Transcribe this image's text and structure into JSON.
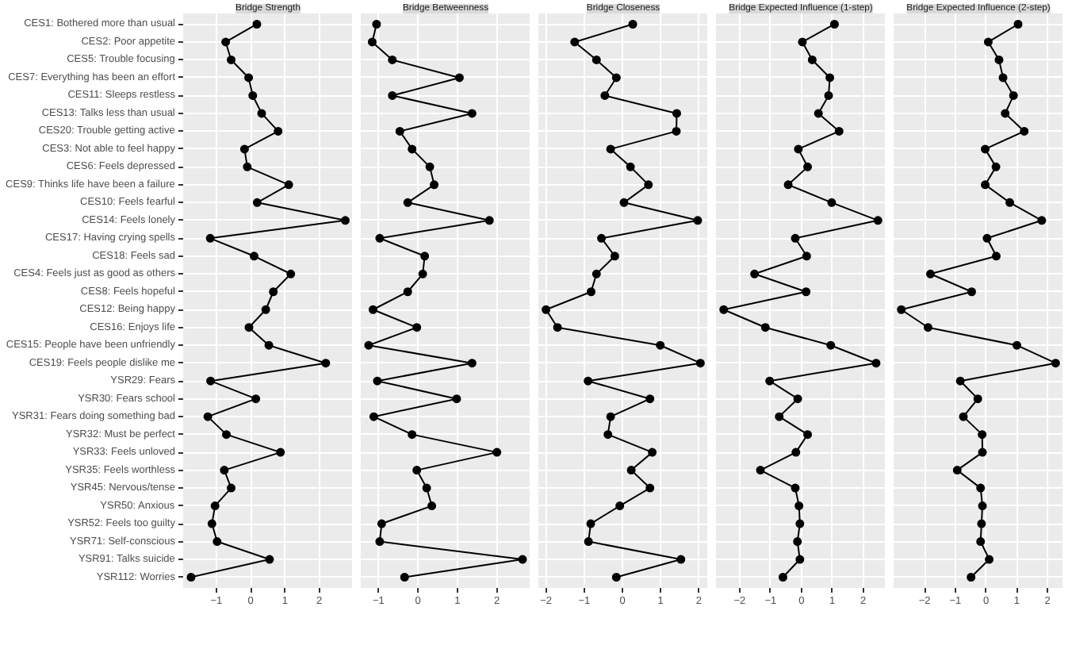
{
  "chart_data": [
    {
      "type": "line",
      "title": "Bridge Strength",
      "orientation": "horizontal",
      "categories": [
        "CES1: Bothered more than usual",
        "CES2: Poor appetite",
        "CES5: Trouble focusing",
        "CES7: Everything has been an effort",
        "CES11: Sleeps restless",
        "CES13: Talks less than usual",
        "CES20: Trouble getting active",
        "CES3: Not able to feel happy",
        "CES6: Feels depressed",
        "CES9: Thinks life have been a failure",
        "CES10: Feels fearful",
        "CES14: Feels lonely",
        "CES17: Having crying spells",
        "CES18: Feels sad",
        "CES4: Feels just as good as others",
        "CES8: Feels hopeful",
        "CES12: Being happy",
        "CES16: Enjoys life",
        "CES15: People have been unfriendly",
        "CES19: Feels people dislike me",
        "YSR29: Fears",
        "YSR30: Fears school",
        "YSR31: Fears doing something bad",
        "YSR32: Must be perfect",
        "YSR33: Feels unloved",
        "YSR35: Feels worthless",
        "YSR45: Nervous/tense",
        "YSR50: Anxious",
        "YSR52: Feels too guilty",
        "YSR71: Self-conscious",
        "YSR91: Talks suicide",
        "YSR112: Worries"
      ],
      "values": [
        0.18,
        -0.73,
        -0.57,
        -0.06,
        0.06,
        0.32,
        0.8,
        -0.18,
        -0.1,
        1.11,
        0.19,
        2.76,
        -1.18,
        0.1,
        1.17,
        0.66,
        0.44,
        -0.05,
        0.53,
        2.19,
        -1.17,
        0.15,
        -1.25,
        -0.71,
        0.87,
        -0.77,
        -0.57,
        -1.04,
        -1.13,
        -0.98,
        0.55,
        -1.74
      ],
      "color": "#000000",
      "marker": "circle",
      "grid": true,
      "xlim": [
        -1.97,
        2.98
      ],
      "xticks": [
        -1,
        0,
        1,
        2
      ]
    },
    {
      "type": "line",
      "title": "Bridge Betweenness",
      "orientation": "horizontal",
      "categories": [
        null,
        null,
        null,
        null,
        null,
        null,
        null,
        null,
        null,
        null,
        null,
        null,
        null,
        null,
        null,
        null,
        null,
        null,
        null,
        null,
        null,
        null,
        null,
        null,
        null,
        null,
        null,
        null,
        null,
        null,
        null,
        null
      ],
      "values": [
        -1.05,
        -1.16,
        -0.65,
        1.05,
        -0.65,
        1.37,
        -0.46,
        -0.15,
        0.3,
        0.41,
        -0.26,
        1.81,
        -0.97,
        0.17,
        0.12,
        -0.26,
        -1.14,
        -0.03,
        -1.25,
        1.37,
        -1.03,
        0.98,
        -1.12,
        -0.15,
        2.0,
        -0.03,
        0.22,
        0.35,
        -0.92,
        -0.97,
        2.65,
        -0.34
      ],
      "color": "#000000",
      "marker": "circle",
      "grid": true,
      "xlim": [
        -1.45,
        2.85
      ],
      "xticks": [
        -1,
        0,
        1,
        2
      ],
      "tick_labels": "x"
    },
    {
      "type": "line",
      "title": "Bridge Closeness",
      "orientation": "horizontal",
      "categories": [
        null,
        null,
        null,
        null,
        null,
        null,
        null,
        null,
        null,
        null,
        null,
        null,
        null,
        null,
        null,
        null,
        null,
        null,
        null,
        null,
        null,
        null,
        null,
        null,
        null,
        null,
        null,
        null,
        null,
        null,
        null,
        null
      ],
      "values": [
        0.27,
        -1.25,
        -0.68,
        -0.16,
        -0.46,
        1.42,
        1.41,
        -0.31,
        0.21,
        0.68,
        0.04,
        1.97,
        -0.55,
        -0.2,
        -0.68,
        -0.82,
        -2.0,
        -1.7,
        0.99,
        2.04,
        -0.9,
        0.72,
        -0.31,
        -0.38,
        0.78,
        0.23,
        0.72,
        -0.07,
        -0.83,
        -0.89,
        1.53,
        -0.16
      ],
      "color": "#000000",
      "marker": "circle",
      "grid": true,
      "xlim": [
        -2.2,
        2.24
      ],
      "xticks": [
        -2,
        -1,
        0,
        1,
        2
      ],
      "tick_labels": "x"
    },
    {
      "type": "line",
      "title": "Bridge Expected Influence (1-step)",
      "orientation": "horizontal",
      "categories": [
        null,
        null,
        null,
        null,
        null,
        null,
        null,
        null,
        null,
        null,
        null,
        null,
        null,
        null,
        null,
        null,
        null,
        null,
        null,
        null,
        null,
        null,
        null,
        null,
        null,
        null,
        null,
        null,
        null,
        null,
        null,
        null
      ],
      "values": [
        1.07,
        0.03,
        0.35,
        0.92,
        0.88,
        0.55,
        1.22,
        -0.1,
        0.2,
        -0.43,
        0.98,
        2.48,
        -0.2,
        0.17,
        -1.52,
        0.15,
        -2.52,
        -1.17,
        0.95,
        2.42,
        -1.03,
        -0.12,
        -0.72,
        0.2,
        -0.18,
        -1.33,
        -0.2,
        -0.08,
        -0.05,
        -0.13,
        -0.05,
        -0.6
      ],
      "color": "#000000",
      "marker": "circle",
      "grid": true,
      "xlim": [
        -2.77,
        2.73
      ],
      "xticks": [
        -2,
        -1,
        0,
        1,
        2
      ],
      "tick_labels": "x"
    },
    {
      "type": "line",
      "title": "Bridge Expected Influence (2-step)",
      "orientation": "horizontal",
      "categories": [
        null,
        null,
        null,
        null,
        null,
        null,
        null,
        null,
        null,
        null,
        null,
        null,
        null,
        null,
        null,
        null,
        null,
        null,
        null,
        null,
        null,
        null,
        null,
        null,
        null,
        null,
        null,
        null,
        null,
        null,
        null,
        null
      ],
      "values": [
        1.04,
        0.07,
        0.42,
        0.55,
        0.89,
        0.62,
        1.24,
        -0.03,
        0.32,
        -0.03,
        0.77,
        1.81,
        0.03,
        0.33,
        -1.81,
        -0.47,
        -2.76,
        -1.89,
        1.0,
        2.26,
        -0.84,
        -0.27,
        -0.74,
        -0.13,
        -0.12,
        -0.94,
        -0.18,
        -0.12,
        -0.15,
        -0.18,
        0.1,
        -0.49
      ],
      "color": "#000000",
      "marker": "circle",
      "grid": true,
      "xlim": [
        -3.01,
        2.51
      ],
      "xticks": [
        -2,
        -1,
        0,
        1,
        2
      ],
      "tick_labels": "x"
    }
  ]
}
